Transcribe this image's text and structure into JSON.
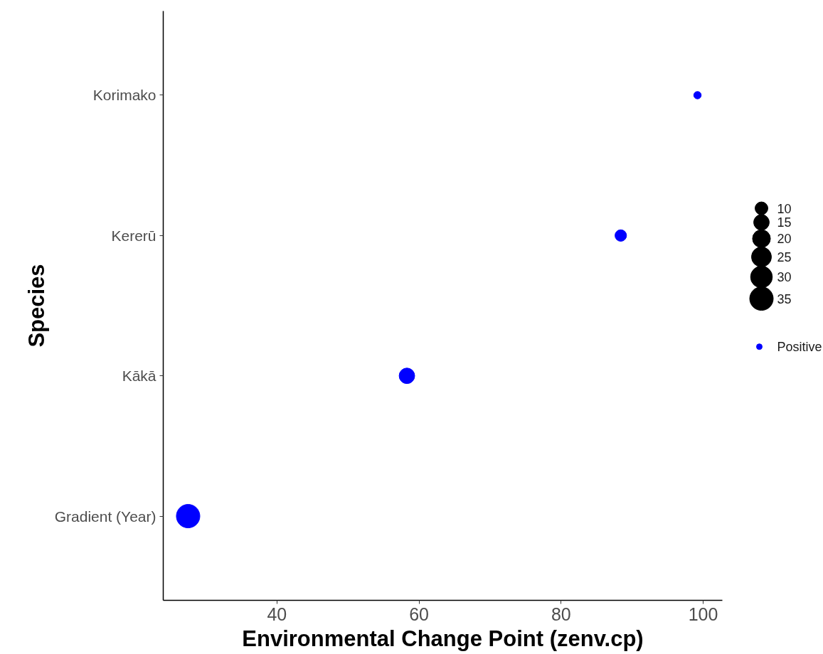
{
  "chart_data": {
    "type": "bubble",
    "orientation": "horizontal",
    "xlabel": "Environmental Change Point (zenv.cp)",
    "ylabel": "Species",
    "categories": [
      "Korimako",
      "Kererū",
      "Kākā",
      "Gradient (Year)"
    ],
    "series": [
      {
        "name": "Positive",
        "color": "#0000ff",
        "values": [
          99.2,
          88.4,
          58.3,
          27.5
        ],
        "sizes": [
          3,
          8,
          15,
          35
        ]
      }
    ],
    "size_legend": [
      10,
      15,
      20,
      25,
      30,
      35
    ],
    "xlim": [
      24,
      102.7
    ],
    "xticks": [
      40,
      60,
      80,
      100
    ],
    "grid": false,
    "legend": "right"
  }
}
